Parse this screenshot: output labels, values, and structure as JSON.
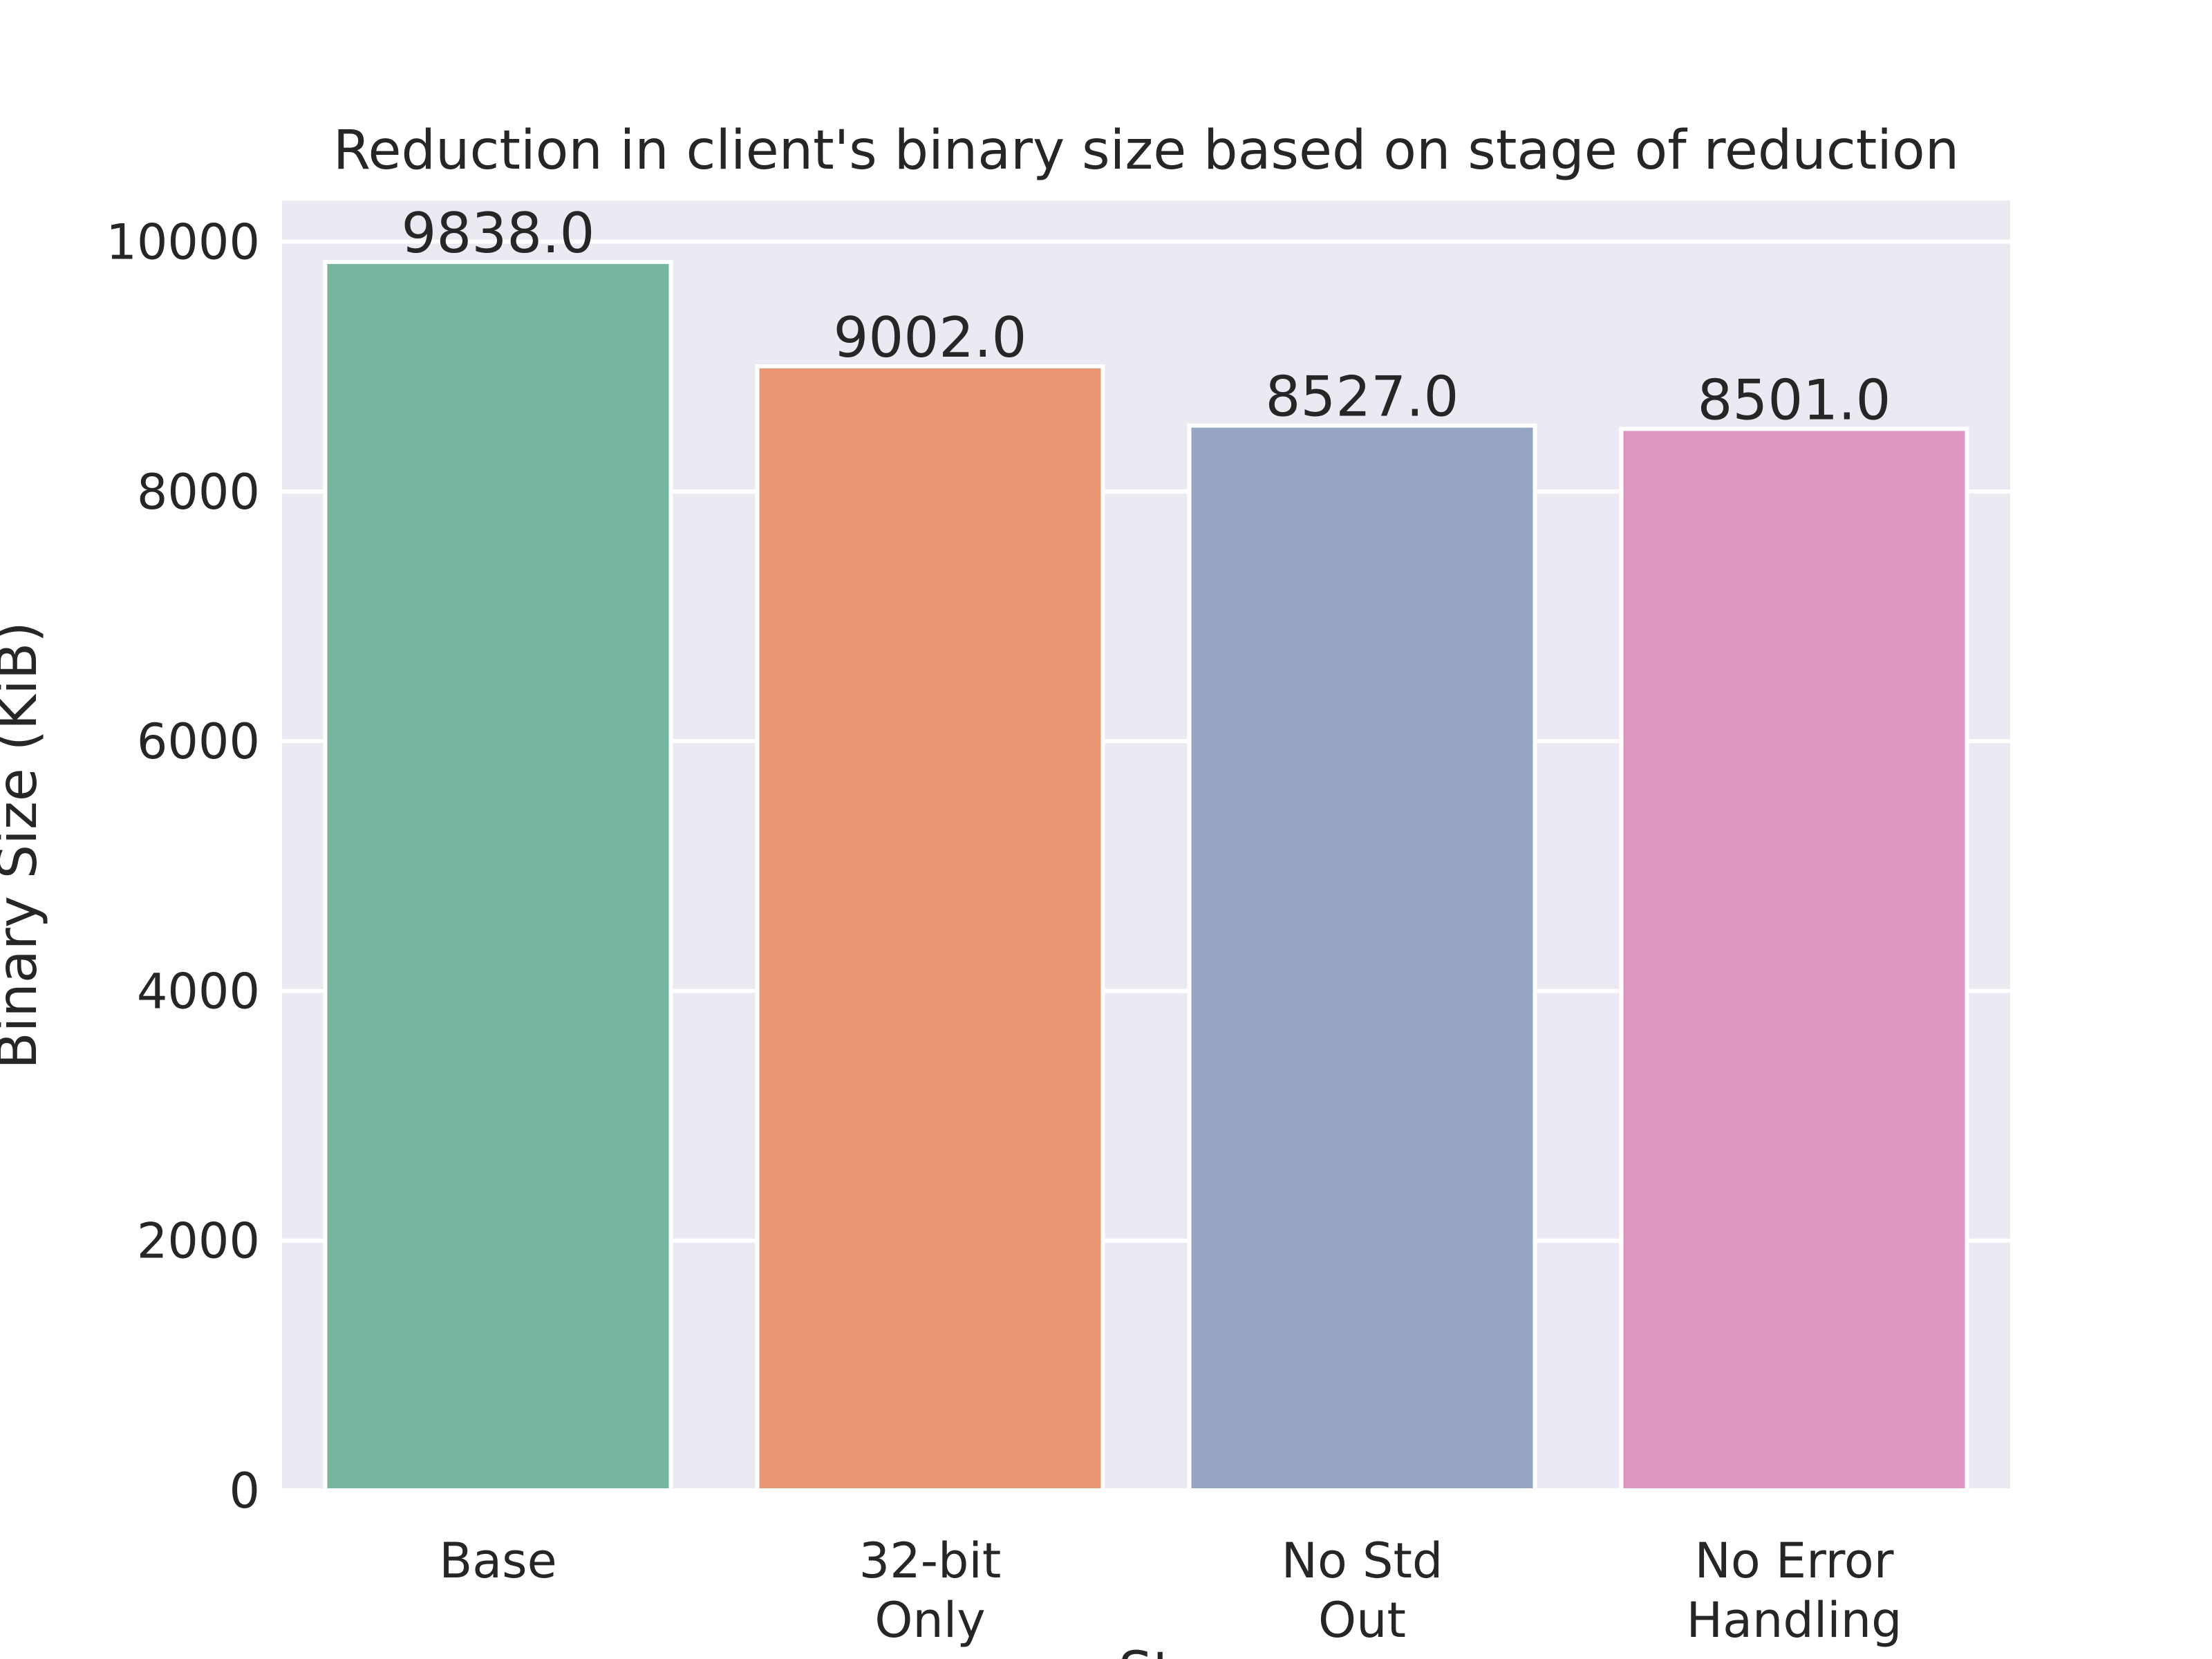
{
  "chart_data": {
    "type": "bar",
    "title": "Reduction in client's binary size based on stage of reduction",
    "xlabel": "St",
    "ylabel": "Binary Size (KiB)",
    "categories": [
      [
        "Base"
      ],
      [
        "32-bit",
        "Only"
      ],
      [
        "No Std",
        "Out"
      ],
      [
        "No Error",
        "Handling"
      ]
    ],
    "values": [
      9838.0,
      9002.0,
      8527.0,
      8501.0
    ],
    "value_labels": [
      "9838.0",
      "9002.0",
      "8527.0",
      "8501.0"
    ],
    "colors": [
      "#76b5a0",
      "#e99675",
      "#95a5c3",
      "#dd96bf"
    ],
    "ylim": [
      0,
      10330
    ],
    "yticks": [
      0,
      2000,
      4000,
      6000,
      8000,
      10000
    ],
    "grid": true,
    "background": "#eaeaf2"
  }
}
